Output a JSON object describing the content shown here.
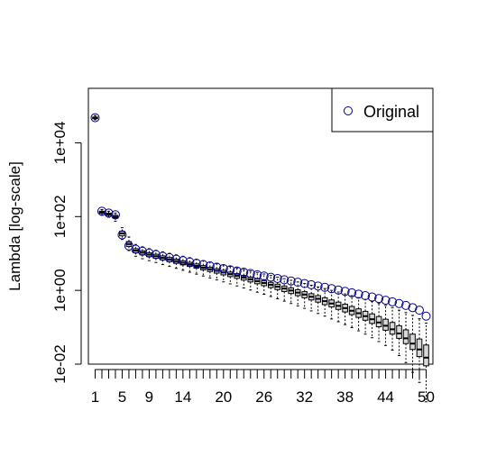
{
  "chart_data": {
    "type": "scatter",
    "ylabel": "Lambda [log-scale]",
    "yscale": "log10",
    "ylim": [
      0.01,
      300000
    ],
    "xlim": [
      0,
      51
    ],
    "y_ticks": [
      {
        "value": 0.01,
        "label": "1e-02"
      },
      {
        "value": 1,
        "label": "1e+00"
      },
      {
        "value": 100,
        "label": "1e+02"
      },
      {
        "value": 10000,
        "label": "1e+04"
      }
    ],
    "x_tick_labels": [
      {
        "value": 1,
        "label": "1"
      },
      {
        "value": 5,
        "label": "5"
      },
      {
        "value": 9,
        "label": "9"
      },
      {
        "value": 14,
        "label": "14"
      },
      {
        "value": 20,
        "label": "20"
      },
      {
        "value": 26,
        "label": "26"
      },
      {
        "value": 32,
        "label": "32"
      },
      {
        "value": 38,
        "label": "38"
      },
      {
        "value": 44,
        "label": "44"
      },
      {
        "value": 50,
        "label": "50"
      }
    ],
    "legend": {
      "position": "top-right",
      "entries": [
        {
          "label": "Original",
          "marker": "open-circle",
          "color": "#00008b"
        }
      ]
    },
    "series": [
      {
        "name": "Original",
        "marker": "open-circle",
        "color": "#00008b",
        "x": [
          1,
          2,
          3,
          4,
          5,
          6,
          7,
          8,
          9,
          10,
          11,
          12,
          13,
          14,
          15,
          16,
          17,
          18,
          19,
          20,
          21,
          22,
          23,
          24,
          25,
          26,
          27,
          28,
          29,
          30,
          31,
          32,
          33,
          34,
          35,
          36,
          37,
          38,
          39,
          40,
          41,
          42,
          43,
          44,
          45,
          46,
          47,
          48,
          49,
          50
        ],
        "y": [
          48000,
          140,
          125,
          112,
          32,
          16,
          13,
          11.5,
          10.3,
          9.3,
          8.4,
          7.7,
          7.0,
          6.4,
          5.9,
          5.4,
          5.0,
          4.6,
          4.25,
          3.9,
          3.6,
          3.35,
          3.1,
          2.87,
          2.65,
          2.45,
          2.27,
          2.1,
          1.94,
          1.8,
          1.66,
          1.53,
          1.42,
          1.31,
          1.21,
          1.11,
          1.02,
          0.94,
          0.86,
          0.79,
          0.72,
          0.66,
          0.6,
          0.54,
          0.49,
          0.44,
          0.39,
          0.34,
          0.29,
          0.2
        ]
      }
    ],
    "bootstrap_boxes": {
      "x": [
        1,
        2,
        3,
        4,
        5,
        6,
        7,
        8,
        9,
        10,
        11,
        12,
        13,
        14,
        15,
        16,
        17,
        18,
        19,
        20,
        21,
        22,
        23,
        24,
        25,
        26,
        27,
        28,
        29,
        30,
        31,
        32,
        33,
        34,
        35,
        36,
        37,
        38,
        39,
        40,
        41,
        42,
        43,
        44,
        45,
        46,
        47,
        48,
        49,
        50
      ],
      "median": [
        47000,
        130,
        115,
        98,
        35,
        18,
        12,
        10.5,
        9.3,
        8.4,
        7.6,
        6.9,
        6.2,
        5.6,
        5.1,
        4.6,
        4.15,
        3.75,
        3.4,
        3.05,
        2.75,
        2.48,
        2.22,
        1.99,
        1.78,
        1.59,
        1.42,
        1.26,
        1.12,
        0.99,
        0.87,
        0.77,
        0.67,
        0.59,
        0.51,
        0.44,
        0.38,
        0.33,
        0.28,
        0.24,
        0.2,
        0.165,
        0.135,
        0.11,
        0.088,
        0.068,
        0.05,
        0.036,
        0.025,
        0.015
      ],
      "q1": [
        45000,
        122,
        108,
        90,
        30,
        15.5,
        10.5,
        9.2,
        8.2,
        7.4,
        6.7,
        6.0,
        5.4,
        4.9,
        4.45,
        4.0,
        3.6,
        3.25,
        2.93,
        2.63,
        2.36,
        2.12,
        1.9,
        1.69,
        1.51,
        1.34,
        1.19,
        1.05,
        0.93,
        0.82,
        0.72,
        0.63,
        0.55,
        0.48,
        0.41,
        0.355,
        0.305,
        0.26,
        0.22,
        0.185,
        0.155,
        0.127,
        0.103,
        0.083,
        0.065,
        0.05,
        0.036,
        0.025,
        0.016,
        0.009
      ],
      "q3": [
        50000,
        140,
        124,
        108,
        40,
        21,
        13.5,
        11.8,
        10.5,
        9.5,
        8.6,
        7.8,
        7.0,
        6.3,
        5.75,
        5.2,
        4.7,
        4.25,
        3.85,
        3.48,
        3.13,
        2.83,
        2.54,
        2.28,
        2.05,
        1.84,
        1.65,
        1.47,
        1.31,
        1.17,
        1.04,
        0.92,
        0.81,
        0.72,
        0.63,
        0.55,
        0.48,
        0.42,
        0.365,
        0.315,
        0.27,
        0.23,
        0.195,
        0.165,
        0.135,
        0.11,
        0.085,
        0.065,
        0.048,
        0.033
      ],
      "whisker_low": [
        42000,
        108,
        96,
        75,
        24,
        12,
        8.4,
        7.2,
        6.4,
        5.7,
        5.0,
        4.45,
        3.95,
        3.5,
        3.1,
        2.75,
        2.45,
        2.17,
        1.92,
        1.7,
        1.5,
        1.32,
        1.16,
        1.02,
        0.89,
        0.78,
        0.68,
        0.59,
        0.51,
        0.44,
        0.38,
        0.325,
        0.278,
        0.236,
        0.2,
        0.168,
        0.141,
        0.118,
        0.098,
        0.08,
        0.065,
        0.052,
        0.041,
        0.032,
        0.024,
        0.017,
        0.011,
        0.006,
        0.0032,
        0.00095
      ],
      "whisker_high": [
        55000,
        155,
        140,
        125,
        50,
        28,
        17.5,
        15.2,
        13.5,
        12.2,
        11.1,
        10.1,
        9.2,
        8.4,
        7.7,
        7.0,
        6.4,
        5.85,
        5.35,
        4.9,
        4.45,
        4.05,
        3.68,
        3.35,
        3.05,
        2.77,
        2.52,
        2.28,
        2.07,
        1.87,
        1.69,
        1.53,
        1.38,
        1.24,
        1.12,
        1.0,
        0.9,
        0.8,
        0.72,
        0.64,
        0.57,
        0.5,
        0.44,
        0.39,
        0.34,
        0.29,
        0.25,
        0.21,
        0.17,
        0.13
      ]
    }
  }
}
